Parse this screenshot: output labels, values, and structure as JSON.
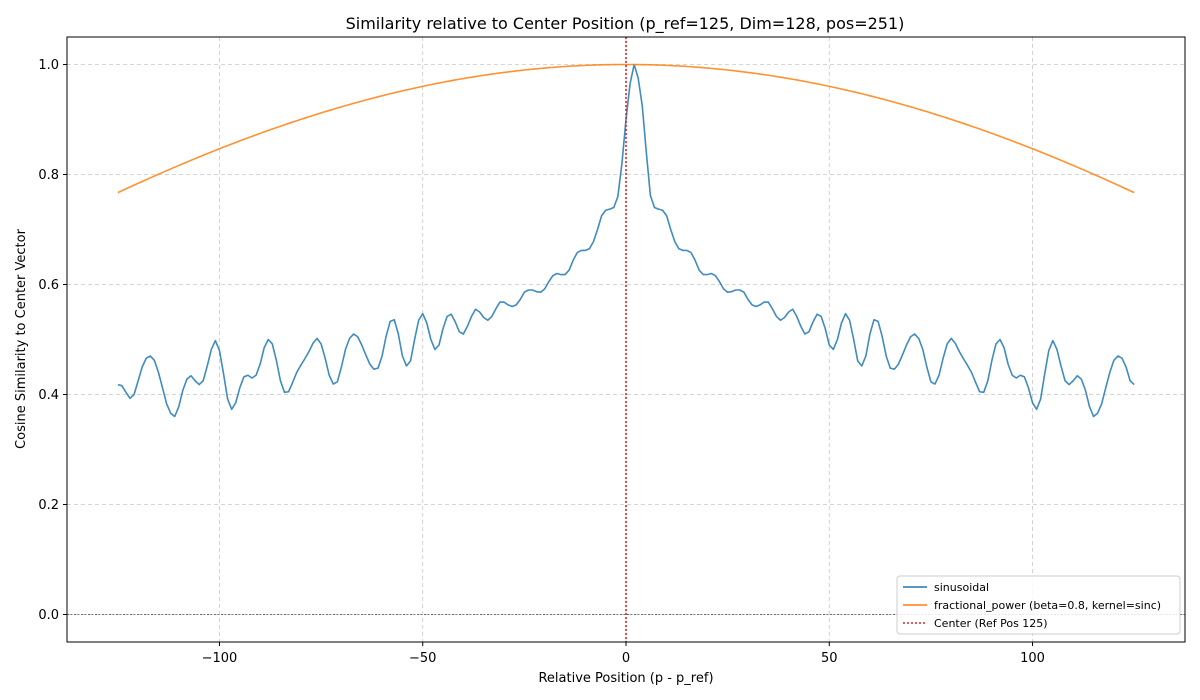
{
  "chart_data": {
    "type": "line",
    "title": "Similarity relative to Center Position (p_ref=125, Dim=128, pos=251)",
    "xlabel": "Relative Position (p - p_ref)",
    "ylabel": "Cosine Similarity to Center Vector",
    "xlim": [
      -137.5,
      137.5
    ],
    "ylim": [
      -0.05,
      1.05
    ],
    "xticks": [
      -100,
      -50,
      0,
      50,
      100
    ],
    "xtick_labels": [
      "−100",
      "−50",
      "0",
      "50",
      "100"
    ],
    "yticks": [
      0.0,
      0.2,
      0.4,
      0.6,
      0.8,
      1.0
    ],
    "ytick_labels": [
      "0.0",
      "0.2",
      "0.4",
      "0.6",
      "0.8",
      "1.0"
    ],
    "grid": true,
    "legend_position": "bottom-right",
    "center_line": {
      "x": 0,
      "label": "Center (Ref Pos 125)",
      "color": "#d62728",
      "style": "dotted"
    },
    "zero_line": {
      "y": 0
    },
    "series": [
      {
        "name": "sinusoidal",
        "color": "#1f77b4",
        "points": [
          [
            -125,
            0.418
          ],
          [
            -124,
            0.416
          ],
          [
            -123,
            0.404
          ],
          [
            -122,
            0.393
          ],
          [
            -121,
            0.4
          ],
          [
            -120,
            0.425
          ],
          [
            -119,
            0.45
          ],
          [
            -118,
            0.466
          ],
          [
            -117,
            0.47
          ],
          [
            -116,
            0.462
          ],
          [
            -115,
            0.44
          ],
          [
            -114,
            0.412
          ],
          [
            -113,
            0.383
          ],
          [
            -112,
            0.366
          ],
          [
            -111,
            0.36
          ],
          [
            -110,
            0.378
          ],
          [
            -109,
            0.408
          ],
          [
            -108,
            0.428
          ],
          [
            -107,
            0.434
          ],
          [
            -106,
            0.425
          ],
          [
            -105,
            0.418
          ],
          [
            -104,
            0.425
          ],
          [
            -103,
            0.452
          ],
          [
            -102,
            0.482
          ],
          [
            -101,
            0.498
          ],
          [
            -100,
            0.48
          ],
          [
            -99,
            0.438
          ],
          [
            -98,
            0.392
          ],
          [
            -97,
            0.373
          ],
          [
            -96,
            0.385
          ],
          [
            -95,
            0.412
          ],
          [
            -94,
            0.432
          ],
          [
            -93,
            0.435
          ],
          [
            -92,
            0.43
          ],
          [
            -91,
            0.435
          ],
          [
            -90,
            0.455
          ],
          [
            -89,
            0.485
          ],
          [
            -88,
            0.5
          ],
          [
            -87,
            0.492
          ],
          [
            -86,
            0.462
          ],
          [
            -85,
            0.425
          ],
          [
            -84,
            0.404
          ],
          [
            -83,
            0.405
          ],
          [
            -82,
            0.422
          ],
          [
            -81,
            0.44
          ],
          [
            -80,
            0.453
          ],
          [
            -79,
            0.465
          ],
          [
            -78,
            0.478
          ],
          [
            -77,
            0.493
          ],
          [
            -76,
            0.502
          ],
          [
            -75,
            0.492
          ],
          [
            -74,
            0.466
          ],
          [
            -73,
            0.435
          ],
          [
            -72,
            0.419
          ],
          [
            -71,
            0.423
          ],
          [
            -70,
            0.45
          ],
          [
            -69,
            0.482
          ],
          [
            -68,
            0.502
          ],
          [
            -67,
            0.51
          ],
          [
            -66,
            0.505
          ],
          [
            -65,
            0.49
          ],
          [
            -64,
            0.472
          ],
          [
            -63,
            0.455
          ],
          [
            -62,
            0.446
          ],
          [
            -61,
            0.448
          ],
          [
            -60,
            0.47
          ],
          [
            -59,
            0.506
          ],
          [
            -58,
            0.533
          ],
          [
            -57,
            0.536
          ],
          [
            -56,
            0.51
          ],
          [
            -55,
            0.47
          ],
          [
            -54,
            0.452
          ],
          [
            -53,
            0.461
          ],
          [
            -52,
            0.5
          ],
          [
            -51,
            0.535
          ],
          [
            -50,
            0.547
          ],
          [
            -49,
            0.53
          ],
          [
            -48,
            0.5
          ],
          [
            -47,
            0.482
          ],
          [
            -46,
            0.49
          ],
          [
            -45,
            0.52
          ],
          [
            -44,
            0.542
          ],
          [
            -43,
            0.546
          ],
          [
            -42,
            0.532
          ],
          [
            -41,
            0.514
          ],
          [
            -40,
            0.51
          ],
          [
            -39,
            0.524
          ],
          [
            -38,
            0.542
          ],
          [
            -37,
            0.555
          ],
          [
            -36,
            0.55
          ],
          [
            -35,
            0.54
          ],
          [
            -34,
            0.535
          ],
          [
            -33,
            0.542
          ],
          [
            -32,
            0.556
          ],
          [
            -31,
            0.568
          ],
          [
            -30,
            0.568
          ],
          [
            -29,
            0.563
          ],
          [
            -28,
            0.56
          ],
          [
            -27,
            0.563
          ],
          [
            -26,
            0.573
          ],
          [
            -25,
            0.586
          ],
          [
            -24,
            0.59
          ],
          [
            -23,
            0.59
          ],
          [
            -22,
            0.587
          ],
          [
            -21,
            0.586
          ],
          [
            -20,
            0.592
          ],
          [
            -19,
            0.605
          ],
          [
            -18,
            0.616
          ],
          [
            -17,
            0.62
          ],
          [
            -16,
            0.618
          ],
          [
            -15,
            0.618
          ],
          [
            -14,
            0.626
          ],
          [
            -13,
            0.644
          ],
          [
            -12,
            0.658
          ],
          [
            -11,
            0.662
          ],
          [
            -10,
            0.662
          ],
          [
            -9,
            0.665
          ],
          [
            -8,
            0.678
          ],
          [
            -7,
            0.7
          ],
          [
            -6,
            0.725
          ],
          [
            -5,
            0.735
          ],
          [
            -4,
            0.737
          ],
          [
            -3,
            0.74
          ],
          [
            -2,
            0.76
          ],
          [
            -1,
            0.82
          ],
          [
            0,
            0.9
          ],
          [
            1,
            0.965
          ],
          [
            2,
            1.0
          ],
          [
            3,
            0.975
          ],
          [
            4,
            0.925
          ],
          [
            5,
            0.84
          ],
          [
            6,
            0.762
          ],
          [
            7,
            0.74
          ],
          [
            8,
            0.737
          ],
          [
            9,
            0.735
          ],
          [
            10,
            0.725
          ],
          [
            11,
            0.7
          ],
          [
            12,
            0.678
          ],
          [
            13,
            0.665
          ],
          [
            14,
            0.662
          ],
          [
            15,
            0.662
          ],
          [
            16,
            0.658
          ],
          [
            17,
            0.644
          ],
          [
            18,
            0.626
          ],
          [
            19,
            0.618
          ],
          [
            20,
            0.618
          ],
          [
            21,
            0.62
          ],
          [
            22,
            0.616
          ],
          [
            23,
            0.605
          ],
          [
            24,
            0.592
          ],
          [
            25,
            0.586
          ],
          [
            26,
            0.587
          ],
          [
            27,
            0.59
          ],
          [
            28,
            0.59
          ],
          [
            29,
            0.586
          ],
          [
            30,
            0.573
          ],
          [
            31,
            0.563
          ],
          [
            32,
            0.56
          ],
          [
            33,
            0.563
          ],
          [
            34,
            0.568
          ],
          [
            35,
            0.568
          ],
          [
            36,
            0.556
          ],
          [
            37,
            0.542
          ],
          [
            38,
            0.535
          ],
          [
            39,
            0.54
          ],
          [
            40,
            0.55
          ],
          [
            41,
            0.555
          ],
          [
            42,
            0.542
          ],
          [
            43,
            0.524
          ],
          [
            44,
            0.51
          ],
          [
            45,
            0.514
          ],
          [
            46,
            0.532
          ],
          [
            47,
            0.546
          ],
          [
            48,
            0.542
          ],
          [
            49,
            0.52
          ],
          [
            50,
            0.49
          ],
          [
            51,
            0.482
          ],
          [
            52,
            0.5
          ],
          [
            53,
            0.53
          ],
          [
            54,
            0.547
          ],
          [
            55,
            0.535
          ],
          [
            56,
            0.5
          ],
          [
            57,
            0.461
          ],
          [
            58,
            0.452
          ],
          [
            59,
            0.47
          ],
          [
            60,
            0.51
          ],
          [
            61,
            0.536
          ],
          [
            62,
            0.533
          ],
          [
            63,
            0.506
          ],
          [
            64,
            0.47
          ],
          [
            65,
            0.448
          ],
          [
            66,
            0.446
          ],
          [
            67,
            0.455
          ],
          [
            68,
            0.472
          ],
          [
            69,
            0.49
          ],
          [
            70,
            0.505
          ],
          [
            71,
            0.51
          ],
          [
            72,
            0.502
          ],
          [
            73,
            0.482
          ],
          [
            74,
            0.45
          ],
          [
            75,
            0.423
          ],
          [
            76,
            0.419
          ],
          [
            77,
            0.435
          ],
          [
            78,
            0.466
          ],
          [
            79,
            0.492
          ],
          [
            80,
            0.502
          ],
          [
            81,
            0.493
          ],
          [
            82,
            0.478
          ],
          [
            83,
            0.465
          ],
          [
            84,
            0.453
          ],
          [
            85,
            0.44
          ],
          [
            86,
            0.422
          ],
          [
            87,
            0.405
          ],
          [
            88,
            0.404
          ],
          [
            89,
            0.425
          ],
          [
            90,
            0.462
          ],
          [
            91,
            0.492
          ],
          [
            92,
            0.5
          ],
          [
            93,
            0.485
          ],
          [
            94,
            0.455
          ],
          [
            95,
            0.435
          ],
          [
            96,
            0.43
          ],
          [
            97,
            0.435
          ],
          [
            98,
            0.432
          ],
          [
            99,
            0.412
          ],
          [
            100,
            0.385
          ],
          [
            101,
            0.373
          ],
          [
            102,
            0.392
          ],
          [
            103,
            0.438
          ],
          [
            104,
            0.48
          ],
          [
            105,
            0.498
          ],
          [
            106,
            0.482
          ],
          [
            107,
            0.452
          ],
          [
            108,
            0.425
          ],
          [
            109,
            0.418
          ],
          [
            110,
            0.425
          ],
          [
            111,
            0.434
          ],
          [
            112,
            0.428
          ],
          [
            113,
            0.408
          ],
          [
            114,
            0.378
          ],
          [
            115,
            0.36
          ],
          [
            116,
            0.366
          ],
          [
            117,
            0.383
          ],
          [
            118,
            0.412
          ],
          [
            119,
            0.44
          ],
          [
            120,
            0.462
          ],
          [
            121,
            0.47
          ],
          [
            122,
            0.466
          ],
          [
            123,
            0.45
          ],
          [
            124,
            0.425
          ],
          [
            125,
            0.418
          ]
        ]
      },
      {
        "name": "fractional_power (beta=0.8, kernel=sinc)",
        "color": "#ff7f0e",
        "function": "sinc",
        "x_range": [
          -125,
          125
        ],
        "peak": 1.0,
        "endpoint_value": 0.767
      }
    ]
  }
}
